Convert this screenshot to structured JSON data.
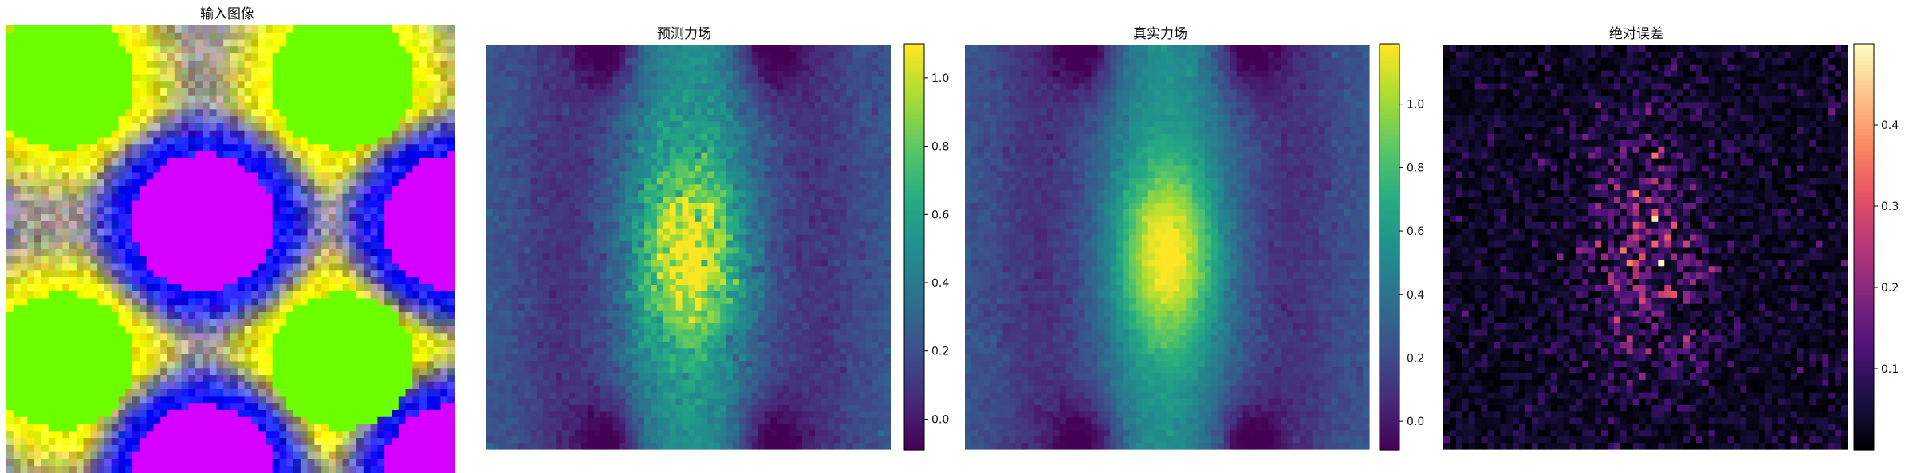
{
  "chart_data": [
    {
      "type": "heatmap",
      "panel": "input",
      "title": "输入图像",
      "colorscale": "rgb-composite",
      "grid_resolution": [
        64,
        64
      ],
      "green_disk_centers": [
        [
          0.125,
          0.125
        ],
        [
          0.75,
          0.125
        ],
        [
          0.125,
          0.75
        ],
        [
          0.75,
          0.75
        ]
      ],
      "magenta_disk_centers": [
        [
          0.44,
          0.44
        ],
        [
          1.0,
          0.44
        ],
        [
          0.44,
          1.0
        ],
        [
          1.0,
          1.0
        ]
      ],
      "disk_radius": 0.16,
      "colors": {
        "green": "#6cff00",
        "magenta": "#d600ff",
        "yellow": "#ffff00",
        "blue": "#1010ff",
        "gray": "#a09a92"
      }
    },
    {
      "type": "heatmap",
      "panel": "predicted",
      "title": "预测力场",
      "colormap": "viridis",
      "grid_resolution": [
        64,
        64
      ],
      "value_range": [
        -0.09,
        1.1
      ],
      "colorbar_ticks": [
        "0.0",
        "0.2",
        "0.4",
        "0.6",
        "0.8",
        "1.0"
      ],
      "colorbar_tick_values": [
        0.0,
        0.2,
        0.4,
        0.6,
        0.8,
        1.0
      ],
      "peak_value": 1.05,
      "noise_level": 0.12
    },
    {
      "type": "heatmap",
      "panel": "ground-truth",
      "title": "真实力场",
      "colormap": "viridis",
      "grid_resolution": [
        64,
        64
      ],
      "value_range": [
        -0.09,
        1.19
      ],
      "colorbar_ticks": [
        "0.0",
        "0.2",
        "0.4",
        "0.6",
        "0.8",
        "1.0"
      ],
      "colorbar_tick_values": [
        0.0,
        0.2,
        0.4,
        0.6,
        0.8,
        1.0
      ],
      "peak_value": 1.15,
      "noise_level": 0.03
    },
    {
      "type": "heatmap",
      "panel": "abs-error",
      "title": "绝对误差",
      "colormap": "magma",
      "grid_resolution": [
        64,
        64
      ],
      "value_range": [
        0.0,
        0.5
      ],
      "colorbar_ticks": [
        "0.1",
        "0.2",
        "0.3",
        "0.4"
      ],
      "colorbar_tick_values": [
        0.1,
        0.2,
        0.3,
        0.4
      ],
      "max_value": 0.45
    }
  ]
}
